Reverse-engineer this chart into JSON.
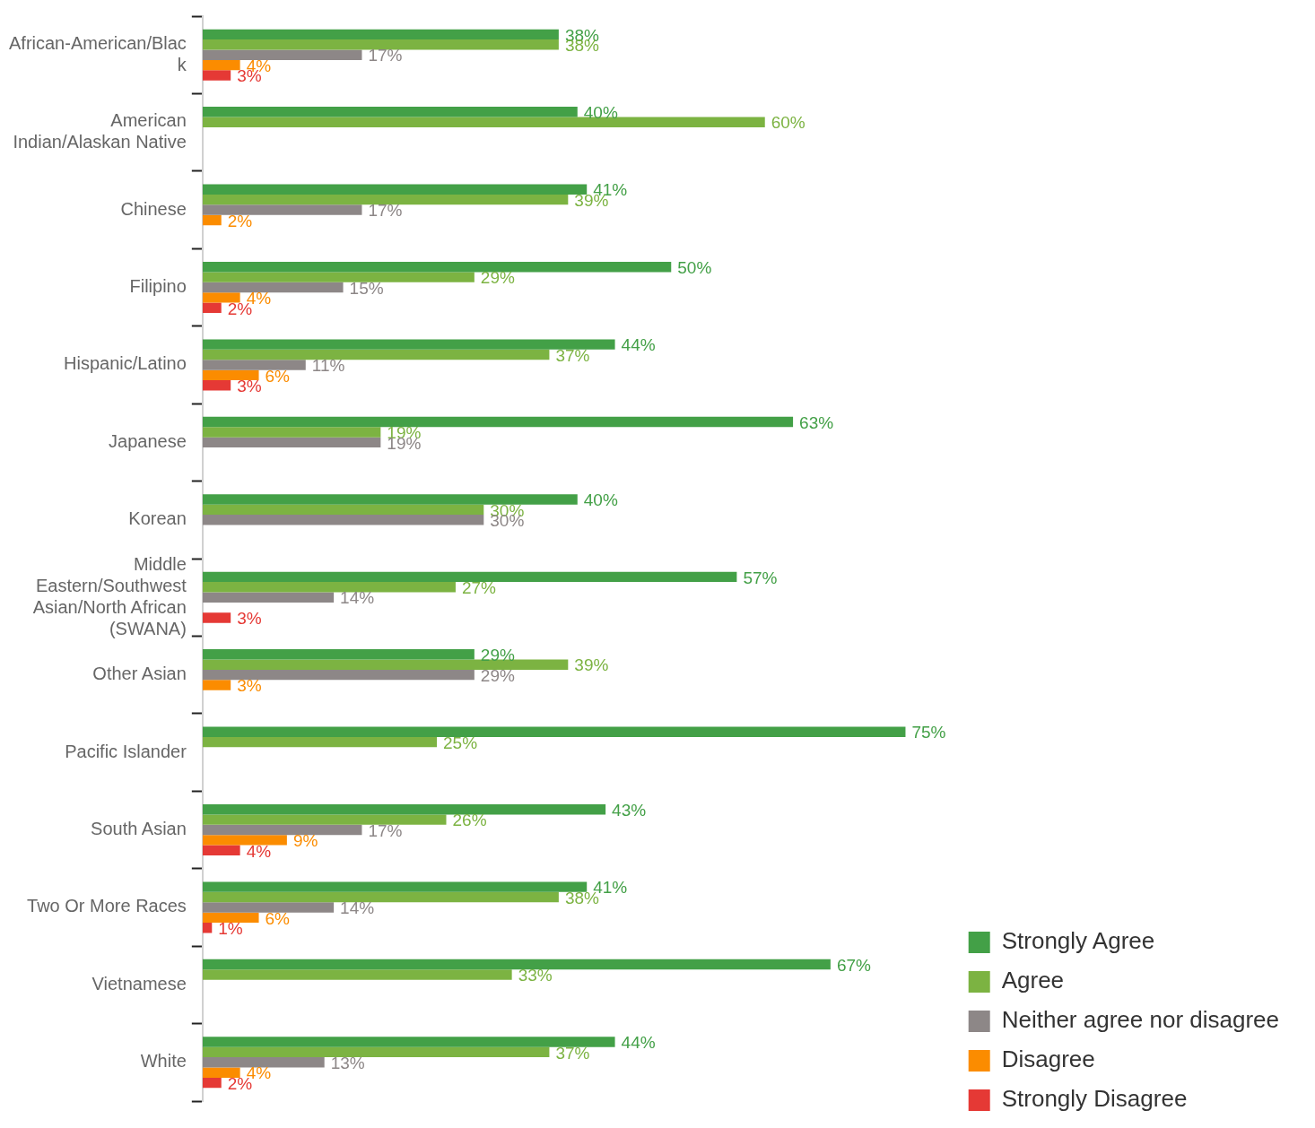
{
  "chart_data": {
    "type": "bar",
    "orientation": "horizontal",
    "categories": [
      "African-American/Black",
      "American Indian/Alaskan Native",
      "Chinese",
      "Filipino",
      "Hispanic/Latino",
      "Japanese",
      "Korean",
      "Middle Eastern/Southwest Asian/North African (SWANA)",
      "Other Asian",
      "Pacific Islander",
      "South Asian",
      "Two Or More Races",
      "Vietnamese",
      "White"
    ],
    "series": [
      {
        "name": "Strongly Agree",
        "color": "#43a047",
        "values": [
          38,
          40,
          41,
          50,
          44,
          63,
          40,
          57,
          29,
          75,
          43,
          41,
          67,
          44
        ],
        "value_labels": [
          "38%",
          "40%",
          "41%",
          "50%",
          "44%",
          "63%",
          "40%",
          "57%",
          "29%",
          "75%",
          "43%",
          "41%",
          "67%",
          "44%"
        ]
      },
      {
        "name": "Agree",
        "color": "#7cb342",
        "values": [
          38,
          60,
          39,
          29,
          37,
          19,
          30,
          27,
          39,
          25,
          26,
          38,
          33,
          37
        ],
        "value_labels": [
          "38%",
          "60%",
          "39%",
          "29%",
          "37%",
          "19%",
          "30%",
          "27%",
          "39%",
          "25%",
          "26%",
          "38%",
          "33%",
          "37%"
        ]
      },
      {
        "name": "Neither agree nor disagree",
        "color": "#8d8787",
        "values": [
          17,
          null,
          17,
          15,
          11,
          19,
          30,
          14,
          29,
          null,
          17,
          14,
          null,
          13
        ],
        "value_labels": [
          "17%",
          null,
          "17%",
          "15%",
          "11%",
          "19%",
          "30%",
          "14%",
          "29%",
          null,
          "17%",
          "14%",
          null,
          "13%"
        ]
      },
      {
        "name": "Disagree",
        "color": "#fb8c00",
        "values": [
          4,
          null,
          2,
          4,
          6,
          null,
          null,
          null,
          3,
          null,
          9,
          6,
          null,
          4
        ],
        "value_labels": [
          "4%",
          null,
          "2%",
          "4%",
          "6%",
          null,
          null,
          null,
          "3%",
          null,
          "9%",
          "6%",
          null,
          "4%"
        ]
      },
      {
        "name": "Strongly Disagree",
        "color": "#e53935",
        "values": [
          3,
          null,
          null,
          2,
          3,
          null,
          null,
          3,
          null,
          null,
          4,
          1,
          null,
          2
        ],
        "value_labels": [
          "3%",
          null,
          null,
          "2%",
          "3%",
          null,
          null,
          "3%",
          null,
          null,
          "4%",
          "1%",
          null,
          "2%"
        ]
      }
    ],
    "tick_labels": "y",
    "grid": false,
    "legend": "bottom right"
  }
}
